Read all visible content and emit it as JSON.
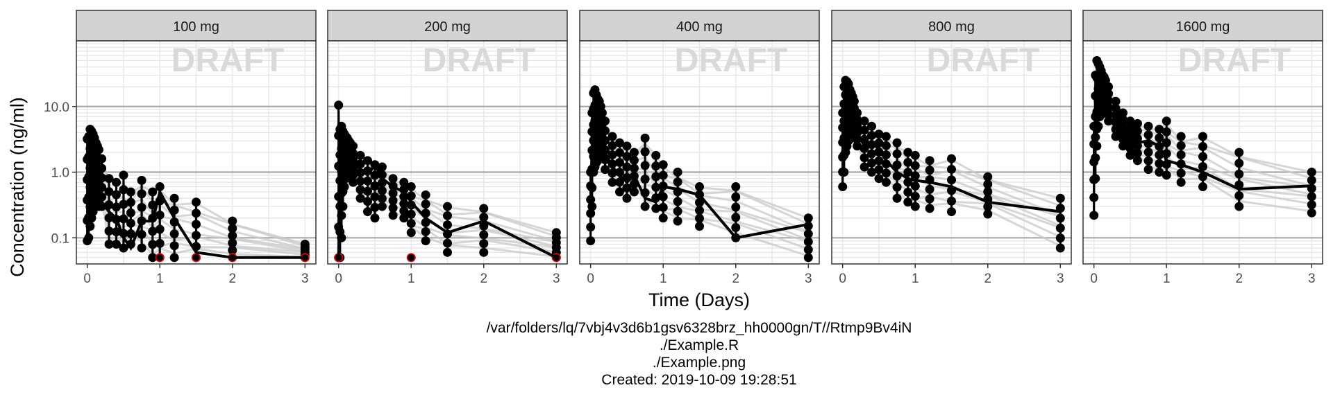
{
  "chart_data": {
    "type": "line",
    "y_scale": "log10",
    "ylim": [
      0.04,
      100
    ],
    "xlim": [
      -0.15,
      3.15
    ],
    "grid": true,
    "legend": "none",
    "xlabel": "Time (Days)",
    "ylabel": "Concentration (ng/ml)",
    "watermark": "DRAFT",
    "x_ticks": [
      "0",
      "1",
      "2",
      "3"
    ],
    "y_ticks": [
      "0.1",
      "1.0",
      "10.0"
    ],
    "x_tick_values": [
      0,
      1,
      2,
      3
    ],
    "y_tick_values": [
      0.1,
      1,
      10
    ],
    "colors": {
      "individual": "#c8c8c8",
      "median": "#000000",
      "point": "#000000",
      "blq": "#ff0000",
      "strip": "#d3d3d3"
    },
    "times": [
      0,
      0.02,
      0.04,
      0.06,
      0.08,
      0.1,
      0.12,
      0.14,
      0.16,
      0.2,
      0.3,
      0.4,
      0.5,
      0.6,
      0.75,
      0.9,
      1,
      1.2,
      1.5,
      2,
      3
    ],
    "panels": [
      {
        "label": "100 mg",
        "median": [
          0.4,
          0.7,
          0.9,
          0.8,
          0.7,
          0.65,
          0.6,
          0.55,
          0.5,
          0.35,
          0.25,
          0.2,
          0.1,
          0.07,
          0.18,
          0.18,
          0.5,
          0.2,
          0.06,
          0.05,
          0.05
        ],
        "range_low": [
          0.09,
          0.1,
          0.15,
          0.2,
          0.25,
          0.3,
          0.3,
          0.35,
          0.3,
          0.3,
          0.08,
          0.08,
          0.07,
          0.08,
          0.07,
          0.05,
          0.05,
          0.05,
          0.05,
          0.05,
          0.05
        ],
        "range_high": [
          3.2,
          3.5,
          4.5,
          4.2,
          3.8,
          3.3,
          2.8,
          2.5,
          2.2,
          1.6,
          0.8,
          0.7,
          0.9,
          0.5,
          0.75,
          0.5,
          0.6,
          0.4,
          0.35,
          0.18,
          0.08
        ],
        "blq_times": [
          1,
          1.5,
          2,
          3
        ]
      },
      {
        "label": "200 mg",
        "median": [
          0.05,
          1.8,
          2.1,
          2.2,
          2.3,
          2.2,
          2.1,
          2.0,
          1.9,
          1.5,
          1.1,
          0.9,
          1.3,
          0.8,
          0.6,
          0.5,
          0.35,
          0.2,
          0.12,
          0.18,
          0.05
        ],
        "range_low": [
          0.05,
          0.05,
          0.1,
          0.3,
          0.6,
          0.8,
          1.0,
          1.1,
          1.0,
          0.7,
          0.4,
          0.25,
          0.2,
          0.3,
          0.22,
          0.2,
          0.12,
          0.09,
          0.06,
          0.06,
          0.05
        ],
        "range_high": [
          10.5,
          4.5,
          5.0,
          4.2,
          3.8,
          3.5,
          3.3,
          3.0,
          2.8,
          2.5,
          1.8,
          1.5,
          1.3,
          1.2,
          0.8,
          0.7,
          0.6,
          0.45,
          0.3,
          0.28,
          0.12
        ],
        "blq_times": [
          0,
          1,
          3
        ]
      },
      {
        "label": "400 mg",
        "median": [
          0.3,
          2.5,
          3.5,
          4.0,
          4.3,
          4.2,
          3.8,
          3.5,
          3.2,
          2.0,
          1.2,
          0.9,
          0.7,
          0.9,
          0.4,
          0.35,
          0.6,
          0.55,
          0.45,
          0.1,
          0.16
        ],
        "range_low": [
          0.09,
          0.3,
          1.0,
          1.2,
          1.4,
          1.5,
          1.6,
          1.7,
          1.8,
          1.1,
          0.7,
          0.5,
          0.4,
          0.5,
          0.3,
          0.28,
          0.2,
          0.18,
          0.15,
          0.1,
          0.05
        ],
        "range_high": [
          1.0,
          8.0,
          16.0,
          18.0,
          15.0,
          13.0,
          12.0,
          10.0,
          8.0,
          6.0,
          3.5,
          2.8,
          2.5,
          2.0,
          3.3,
          1.8,
          1.3,
          1.0,
          0.6,
          0.6,
          0.2
        ],
        "blq_times": []
      },
      {
        "label": "800 mg",
        "median": [
          2.0,
          6.0,
          8.0,
          9.0,
          8.5,
          8.0,
          7.5,
          7.0,
          6.5,
          4.0,
          2.5,
          3.0,
          2.2,
          1.5,
          1.0,
          0.8,
          0.75,
          0.7,
          0.6,
          0.35,
          0.25
        ],
        "range_low": [
          0.6,
          1.0,
          2.0,
          2.5,
          3.0,
          3.2,
          3.3,
          3.5,
          3.5,
          2.5,
          1.2,
          1.0,
          0.8,
          0.7,
          0.4,
          0.35,
          0.3,
          0.28,
          0.25,
          0.23,
          0.07
        ],
        "range_high": [
          8.0,
          20.0,
          25.0,
          24.0,
          22.0,
          18.0,
          16.0,
          14.0,
          12.0,
          8.0,
          6.0,
          5.0,
          3.8,
          3.5,
          2.8,
          2.0,
          1.8,
          1.5,
          1.6,
          0.85,
          0.4
        ],
        "blq_times": []
      },
      {
        "label": "1600 mg",
        "median": [
          0.8,
          12.0,
          15.0,
          20.0,
          18.0,
          15.0,
          14.0,
          13.0,
          12.0,
          9.0,
          6.0,
          4.5,
          3.0,
          2.8,
          3.0,
          2.5,
          1.5,
          1.3,
          1.0,
          0.55,
          0.62
        ],
        "range_low": [
          0.22,
          0.8,
          2.5,
          5.0,
          7.0,
          7.5,
          7.8,
          8.0,
          8.5,
          6.0,
          3.5,
          2.5,
          1.8,
          1.5,
          1.1,
          1.0,
          0.9,
          0.7,
          0.6,
          0.3,
          0.24
        ],
        "range_high": [
          5.0,
          30.0,
          50.0,
          45.0,
          40.0,
          35.0,
          30.0,
          28.0,
          25.0,
          20.0,
          12.0,
          8.0,
          6.0,
          5.5,
          5.0,
          4.5,
          6.0,
          3.5,
          3.5,
          2.0,
          1.0
        ],
        "blq_times": []
      }
    ]
  },
  "caption": {
    "line1": "/var/folders/lq/7vbj4v3d6b1gsv6328brz_hh0000gn/T//Rtmp9Bv4iN",
    "line2": "./Example.R",
    "line3": "./Example.png",
    "line4": "Created: 2019-10-09 19:28:51"
  }
}
